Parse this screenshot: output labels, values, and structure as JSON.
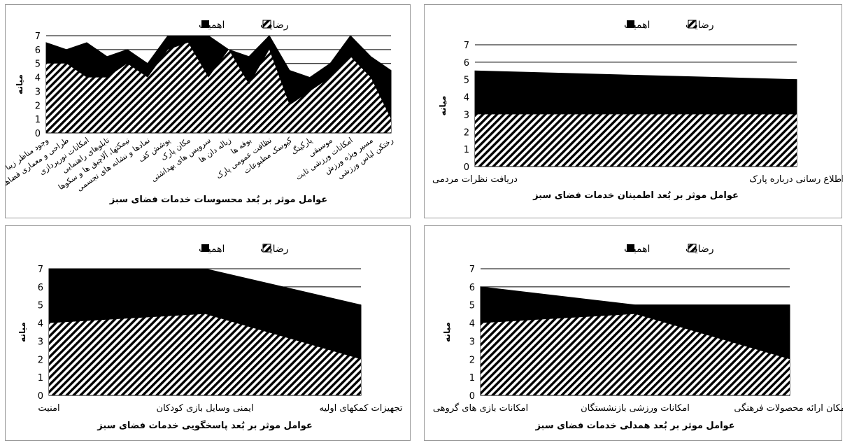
{
  "legend": {
    "satisfaction": "رضایت",
    "importance": "اهمیت"
  },
  "colors": {
    "importance": "#000000",
    "satisfaction_hatch": "#000000",
    "gridline": "#000000"
  },
  "chart_data": [
    {
      "type": "area",
      "title": "",
      "xlabel": "عوامل موثر بر بُعد محسوسات خدمات فضای سبز",
      "ylabel": "میانه",
      "ylim": [
        0,
        7
      ],
      "yticks": [
        "0",
        "1",
        "2",
        "3",
        "4",
        "5",
        "6",
        "7"
      ],
      "grid": true,
      "legend_position": "top",
      "categories": [
        "وجود مناظر زیبا",
        "طراحی و معماری فضاهای پارک",
        "امکانات نورپردازی",
        "تابلوهای راهنمایی",
        "نیمکتها، آلاچیق ها و سکوها",
        "نمادها و نشانه های تجسمی",
        "پوشش کف",
        "مکان پارک",
        "سرویس های بهداشتی",
        "زباله دان ها",
        "بوفه ها",
        "نظافت عمومی پارک",
        "کیوسک مطبوعات",
        "پارکینگ",
        "موسیقی",
        "امکانات ورزشی ثابت",
        "مسیر ویژه ورزش",
        "رختکن لباس ورزشی"
      ],
      "series": [
        {
          "name": "رضایت",
          "values": [
            5,
            5,
            4,
            4,
            5,
            4,
            6,
            6.5,
            4,
            6,
            3.5,
            6,
            2,
            3,
            4,
            5.5,
            4,
            1
          ]
        },
        {
          "name": "اهمیت",
          "values": [
            6.5,
            6,
            6.5,
            5.5,
            6,
            5,
            7,
            7,
            7,
            6,
            5.5,
            7,
            4.5,
            4,
            5,
            7,
            5.5,
            4.5
          ]
        }
      ]
    },
    {
      "type": "area",
      "title": "",
      "xlabel": "عوامل موثر بر بُعد اطمینان خدمات فضای سبز",
      "ylabel": "میانه",
      "ylim": [
        0,
        7
      ],
      "yticks": [
        "0",
        "1",
        "2",
        "3",
        "4",
        "5",
        "6",
        "7"
      ],
      "grid": true,
      "legend_position": "top",
      "categories": [
        "دریافت نظرات مردمی",
        "اطلاع رسانی درباره پارک"
      ],
      "series": [
        {
          "name": "رضایت",
          "values": [
            3,
            3
          ]
        },
        {
          "name": "اهمیت",
          "values": [
            5.5,
            5
          ]
        }
      ]
    },
    {
      "type": "area",
      "title": "",
      "xlabel": "عوامل موثر بر بُعد پاسخگویی خدمات فضای سبز",
      "ylabel": "میانه",
      "ylim": [
        0,
        7
      ],
      "yticks": [
        "0",
        "1",
        "2",
        "3",
        "4",
        "5",
        "6",
        "7"
      ],
      "grid": true,
      "legend_position": "top",
      "categories": [
        "امنیت",
        "ایمنی وسایل بازی کودکان",
        "تجهیزات کمکهای اولیه"
      ],
      "series": [
        {
          "name": "رضایت",
          "values": [
            4,
            4.5,
            2
          ]
        },
        {
          "name": "اهمیت",
          "values": [
            7,
            7,
            5
          ]
        }
      ]
    },
    {
      "type": "area",
      "title": "",
      "xlabel": "عوامل موثر بر بُعد همدلی خدمات فضای سبز",
      "ylabel": "میانه",
      "ylim": [
        0,
        7
      ],
      "yticks": [
        "0",
        "1",
        "2",
        "3",
        "4",
        "5",
        "6",
        "7"
      ],
      "grid": true,
      "legend_position": "top",
      "categories": [
        "امکانات بازی های گروهی",
        "امکانات ورزشی بازنشستگان",
        "مکان ارائه محصولات فرهنگی"
      ],
      "series": [
        {
          "name": "رضایت",
          "values": [
            4,
            4.5,
            2
          ]
        },
        {
          "name": "اهمیت",
          "values": [
            6,
            5,
            5
          ]
        }
      ]
    }
  ]
}
